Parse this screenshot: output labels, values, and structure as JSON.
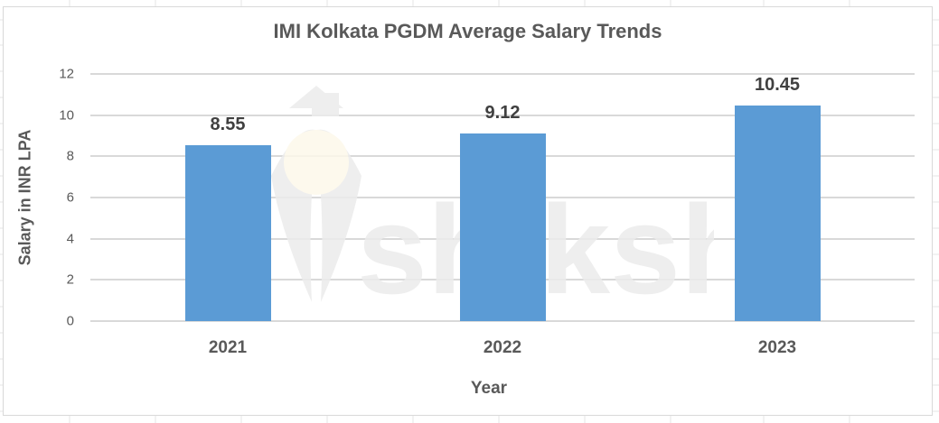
{
  "chart_data": {
    "type": "bar",
    "title": "IMI Kolkata PGDM Average Salary Trends",
    "xlabel": "Year",
    "ylabel": "Salary in INR LPA",
    "categories": [
      "2021",
      "2022",
      "2023"
    ],
    "values": [
      8.55,
      9.12,
      10.45
    ],
    "data_labels": [
      "8.55",
      "9.12",
      "10.45"
    ],
    "ylim": [
      0,
      12
    ],
    "yticks": [
      "0",
      "2",
      "4",
      "6",
      "8",
      "10",
      "12"
    ],
    "grid": true,
    "legend": "none",
    "bar_color": "#5b9bd5"
  },
  "watermark": {
    "text": "shiksha",
    "icon": "graduation-cap-bulb-logo"
  }
}
